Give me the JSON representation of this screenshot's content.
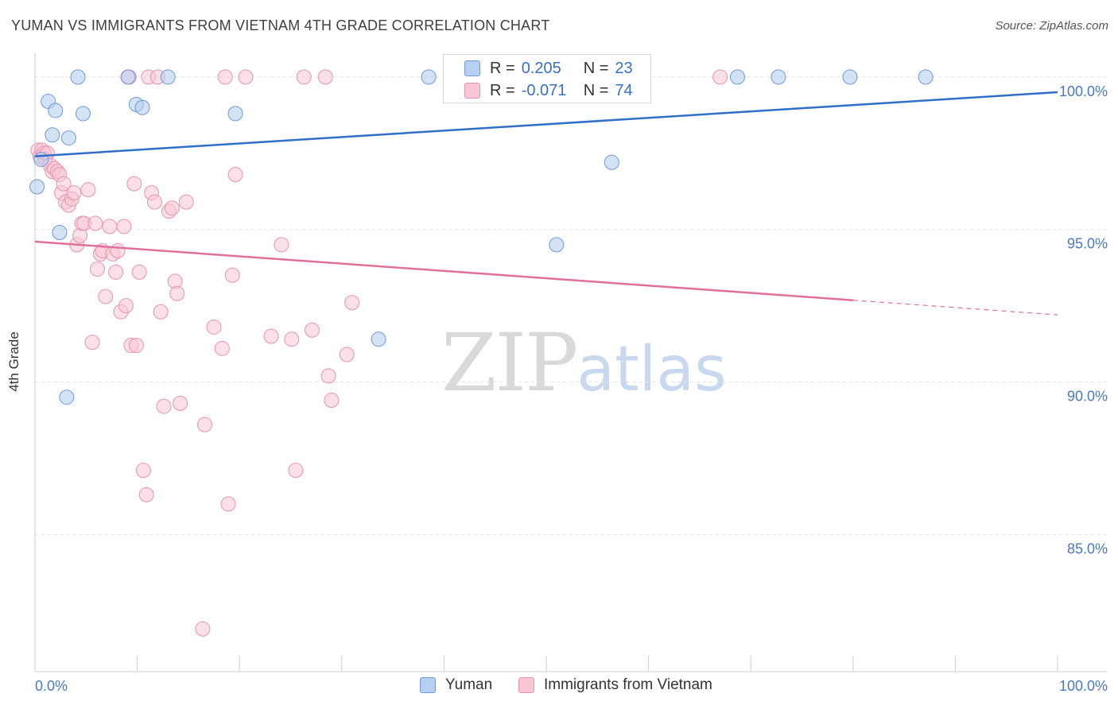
{
  "title": "YUMAN VS IMMIGRANTS FROM VIETNAM 4TH GRADE CORRELATION CHART",
  "source": "Source: ZipAtlas.com",
  "watermark": {
    "zip": "ZIP",
    "atlas": "atlas"
  },
  "legend": {
    "r_label": "R =",
    "n_label": "N =",
    "rows": [
      {
        "r": "0.205",
        "n": "23"
      },
      {
        "r": "-0.071",
        "n": "74"
      }
    ]
  },
  "colors": {
    "yuman_fill": "#b7cff0",
    "yuman_stroke": "#6d9ad8",
    "yuman_line": "#2f6fc8",
    "viet_fill": "#f8c6d4",
    "viet_stroke": "#e993ad",
    "viet_line": "#e07099",
    "tick_label": "#4a78c2",
    "grid": "#e3e3e3"
  },
  "chart_data": {
    "type": "scatter",
    "title": "YUMAN VS IMMIGRANTS FROM VIETNAM 4TH GRADE CORRELATION CHART",
    "xlabel": "",
    "ylabel": "4th Grade",
    "xlim": [
      0,
      100
    ],
    "ylim": [
      80.5,
      100.7
    ],
    "x_ticks": [
      "0.0%",
      "100.0%"
    ],
    "y_ticks": [
      {
        "value": 85,
        "label": "85.0%"
      },
      {
        "value": 90,
        "label": "90.0%"
      },
      {
        "value": 95,
        "label": "95.0%"
      },
      {
        "value": 100,
        "label": "100.0%"
      }
    ],
    "grid": true,
    "legend_position": "bottom",
    "series": [
      {
        "name": "Yuman",
        "r": 0.205,
        "n": 23,
        "trend": {
          "x": [
            0,
            100
          ],
          "y": [
            97.4,
            99.5
          ]
        },
        "points": [
          [
            0.2,
            96.4
          ],
          [
            0.6,
            97.3
          ],
          [
            1.3,
            99.2
          ],
          [
            1.7,
            98.1
          ],
          [
            2.0,
            98.9
          ],
          [
            2.4,
            94.9
          ],
          [
            3.1,
            89.5
          ],
          [
            3.3,
            98.0
          ],
          [
            4.2,
            100.0
          ],
          [
            4.7,
            98.8
          ],
          [
            9.1,
            100.0
          ],
          [
            9.9,
            99.1
          ],
          [
            10.5,
            99.0
          ],
          [
            13.0,
            100.0
          ],
          [
            19.6,
            98.8
          ],
          [
            33.6,
            91.4
          ],
          [
            38.5,
            100.0
          ],
          [
            51.0,
            94.5
          ],
          [
            56.4,
            97.2
          ],
          [
            68.7,
            100.0
          ],
          [
            72.7,
            100.0
          ],
          [
            79.7,
            100.0
          ],
          [
            87.1,
            100.0
          ]
        ]
      },
      {
        "name": "Immigrants from Vietnam",
        "r": -0.071,
        "n": 74,
        "trend": {
          "x": [
            0,
            100
          ],
          "y": [
            94.6,
            92.2
          ],
          "solid_until": 80
        },
        "points": [
          [
            0.3,
            97.6
          ],
          [
            0.5,
            97.4
          ],
          [
            0.7,
            97.6
          ],
          [
            0.9,
            97.5
          ],
          [
            1.0,
            97.3
          ],
          [
            1.2,
            97.5
          ],
          [
            1.5,
            97.1
          ],
          [
            1.7,
            96.9
          ],
          [
            1.9,
            97.0
          ],
          [
            2.2,
            96.9
          ],
          [
            2.4,
            96.8
          ],
          [
            2.6,
            96.2
          ],
          [
            2.8,
            96.5
          ],
          [
            3.0,
            95.9
          ],
          [
            3.3,
            95.8
          ],
          [
            3.6,
            96.0
          ],
          [
            3.8,
            96.2
          ],
          [
            4.1,
            94.5
          ],
          [
            4.4,
            94.8
          ],
          [
            4.6,
            95.2
          ],
          [
            4.8,
            95.2
          ],
          [
            5.2,
            96.3
          ],
          [
            5.6,
            91.3
          ],
          [
            5.9,
            95.2
          ],
          [
            6.1,
            93.7
          ],
          [
            6.4,
            94.2
          ],
          [
            6.6,
            94.3
          ],
          [
            6.9,
            92.8
          ],
          [
            7.3,
            95.1
          ],
          [
            7.6,
            94.2
          ],
          [
            7.9,
            93.6
          ],
          [
            8.1,
            94.3
          ],
          [
            8.4,
            92.3
          ],
          [
            8.7,
            95.1
          ],
          [
            8.9,
            92.5
          ],
          [
            9.2,
            100.0
          ],
          [
            9.4,
            91.2
          ],
          [
            9.7,
            96.5
          ],
          [
            9.9,
            91.2
          ],
          [
            10.2,
            93.6
          ],
          [
            10.6,
            87.1
          ],
          [
            10.9,
            86.3
          ],
          [
            11.1,
            100.0
          ],
          [
            11.4,
            96.2
          ],
          [
            11.7,
            95.9
          ],
          [
            12.0,
            100.0
          ],
          [
            12.3,
            92.3
          ],
          [
            12.6,
            89.2
          ],
          [
            13.1,
            95.6
          ],
          [
            13.4,
            95.7
          ],
          [
            13.7,
            93.3
          ],
          [
            13.9,
            92.9
          ],
          [
            14.2,
            89.3
          ],
          [
            14.8,
            95.9
          ],
          [
            16.4,
            81.9
          ],
          [
            16.6,
            88.6
          ],
          [
            17.5,
            91.8
          ],
          [
            18.3,
            91.1
          ],
          [
            18.6,
            100.0
          ],
          [
            18.9,
            86.0
          ],
          [
            19.3,
            93.5
          ],
          [
            19.6,
            96.8
          ],
          [
            20.6,
            100.0
          ],
          [
            23.1,
            91.5
          ],
          [
            24.1,
            94.5
          ],
          [
            25.1,
            91.4
          ],
          [
            25.5,
            87.1
          ],
          [
            26.3,
            100.0
          ],
          [
            27.1,
            91.7
          ],
          [
            28.4,
            100.0
          ],
          [
            28.7,
            90.2
          ],
          [
            29.0,
            89.4
          ],
          [
            30.5,
            90.9
          ],
          [
            31.0,
            92.6
          ],
          [
            67.0,
            100.0
          ]
        ]
      }
    ]
  }
}
